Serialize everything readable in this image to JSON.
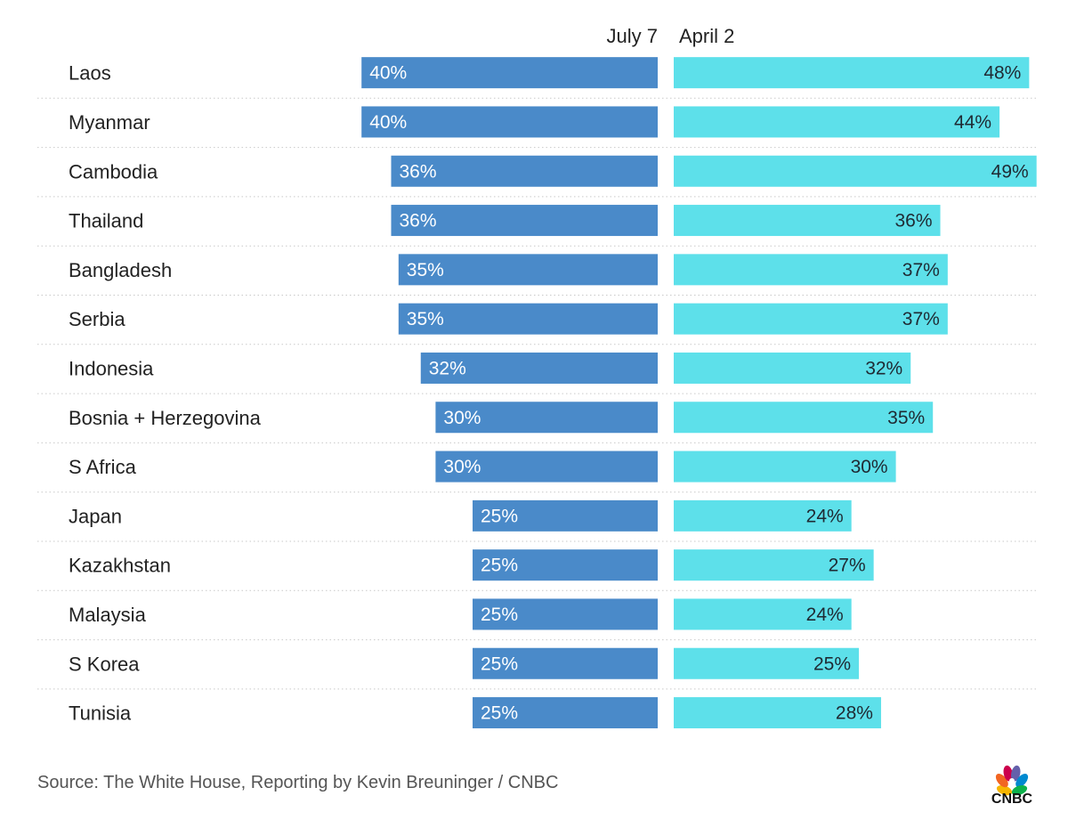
{
  "chart_data": {
    "type": "bar",
    "series": [
      {
        "name": "July 7",
        "color": "#4a8ac9",
        "values": [
          40,
          40,
          36,
          36,
          35,
          35,
          32,
          30,
          30,
          25,
          25,
          25,
          25,
          25
        ]
      },
      {
        "name": "April 2",
        "color": "#5de0ea",
        "values": [
          48,
          44,
          49,
          36,
          37,
          37,
          32,
          35,
          30,
          24,
          27,
          24,
          25,
          28
        ]
      }
    ],
    "categories": [
      "Laos",
      "Myanmar",
      "Cambodia",
      "Thailand",
      "Bangladesh",
      "Serbia",
      "Indonesia",
      "Bosnia + Herzegovina",
      "S Africa",
      "Japan",
      "Kazakhstan",
      "Malaysia",
      "S Korea",
      "Tunisia"
    ],
    "flags": [
      "laos-flag-icon",
      "myanmar-flag-icon",
      "cambodia-flag-icon",
      "thailand-flag-icon",
      "bangladesh-flag-icon",
      "serbia-flag-icon",
      "indonesia-flag-icon",
      "bosnia-flag-icon",
      "south-africa-flag-icon",
      "japan-flag-icon",
      "kazakhstan-flag-icon",
      "malaysia-flag-icon",
      "south-korea-flag-icon",
      "tunisia-flag-icon"
    ],
    "value_format": "percent",
    "grid": "dotted row separators",
    "legend": "series names above columns"
  },
  "footer": {
    "source": "Source: The White House, Reporting by Kevin Breuninger / CNBC",
    "logo_text": "CNBC"
  }
}
